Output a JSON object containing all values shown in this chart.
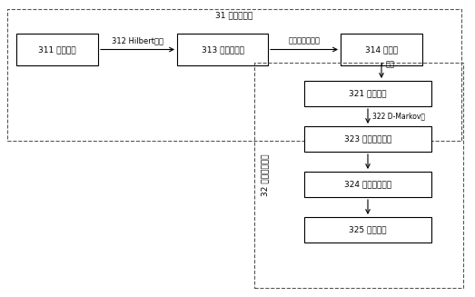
{
  "title_31": "31 相空间分割",
  "title_32": "32 符号动态滤波",
  "box_311": "311 数据序列",
  "box_313": "313 复数域信号",
  "box_314": "314 相空间",
  "box_321": "321 符号序列",
  "box_323": "323 状态转移矩阵",
  "box_324": "324 状态概率向量",
  "box_325": "325 浓度测度",
  "arrow_312": "312 Hilbert变换",
  "arrow_map": "映射至二维空间",
  "arrow_split": "分割",
  "arrow_322": "322 D-Markov机",
  "bg_color": "#ffffff",
  "box_color": "#ffffff",
  "box_edge": "#000000",
  "dash_color": "#555555",
  "text_color": "#000000",
  "font_size": 6.5,
  "arrow_color": "#000000"
}
